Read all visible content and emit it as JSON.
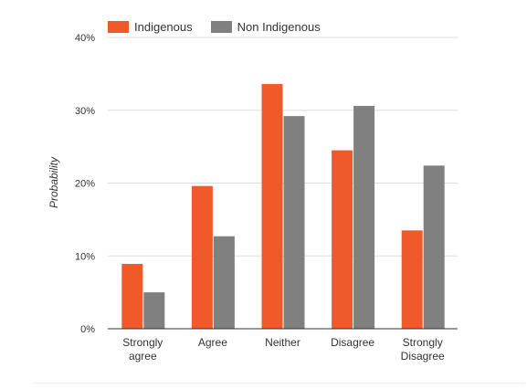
{
  "chart_data": {
    "type": "bar",
    "ylabel": "Probability",
    "xlabel": "",
    "ylim": [
      0,
      40
    ],
    "yticks": [
      {
        "value": 0,
        "label": "0%"
      },
      {
        "value": 10,
        "label": "10%"
      },
      {
        "value": 20,
        "label": "20%"
      },
      {
        "value": 30,
        "label": "30%"
      },
      {
        "value": 40,
        "label": "40%"
      }
    ],
    "categories": [
      [
        "Strongly",
        "agree"
      ],
      [
        "Agree"
      ],
      [
        "Neither"
      ],
      [
        "Disagree"
      ],
      [
        "Strongly",
        "Disagree"
      ]
    ],
    "series": [
      {
        "name": "Indigenous",
        "color": "#f05a28",
        "values": [
          8.9,
          19.6,
          33.6,
          24.5,
          13.5
        ]
      },
      {
        "name": "Non Indigenous",
        "color": "#808080",
        "values": [
          5.0,
          12.7,
          29.2,
          30.6,
          22.4
        ]
      }
    ],
    "grid": true,
    "legend_position": "top-left"
  }
}
